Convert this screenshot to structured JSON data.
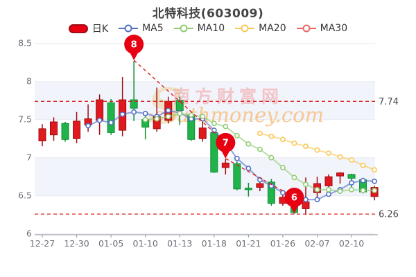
{
  "title": "北特科技(603009)",
  "legend": {
    "day_k": "日K",
    "ma5": "MA5",
    "ma10": "MA10",
    "ma20": "MA20",
    "ma30": "MA30"
  },
  "watermark": {
    "logo": "S",
    "cn": "南方财富网",
    "en": "southmoney.com"
  },
  "colors": {
    "up": "#e0191f",
    "up_border": "#9d0d12",
    "down": "#20b34a",
    "down_border": "#0d8f33",
    "ma5": "#5470c6",
    "ma10": "#91cc75",
    "ma20": "#fac858",
    "ma30": "#ee6666",
    "ref_line": "#d8201c",
    "pin": "#e60012",
    "grid": "#e7eaf2",
    "band": "#f2f4fb",
    "axis": "#8f939d",
    "label": "#6b6e76",
    "ref_label": "#44464a",
    "title": "#454545",
    "watermark_cn": "rgba(240,150,150,0.5)",
    "watermark_en": "rgba(247,184,108,0.75)",
    "watermark_s": "rgba(236,210,164,0.6)"
  },
  "chart_data": {
    "type": "candlestick",
    "title": "北特科技(603009)",
    "ylim": [
      5.99,
      8.5
    ],
    "y_ticks": [
      8.5,
      8,
      7.5,
      7,
      6.5,
      6
    ],
    "y_tick_labels": [
      "8.5",
      "8",
      "7.5",
      "7",
      "6.5",
      "6"
    ],
    "x_tick_indices": [
      0,
      3,
      6,
      9,
      12,
      15,
      18,
      21,
      24,
      27
    ],
    "x_tick_labels": [
      "12-27",
      "12-30",
      "01-05",
      "01-10",
      "01-13",
      "01-18",
      "01-21",
      "01-26",
      "02-07",
      "02-10"
    ],
    "grid": "horizontal",
    "legend_position": "top",
    "candle_columns": [
      "date",
      "open",
      "close",
      "low",
      "high"
    ],
    "candles": [
      [
        "12-27",
        7.22,
        7.38,
        7.15,
        7.44
      ],
      [
        "12-28",
        7.3,
        7.47,
        7.22,
        7.53
      ],
      [
        "12-29",
        7.45,
        7.24,
        7.21,
        7.47
      ],
      [
        "12-30",
        7.25,
        7.48,
        7.19,
        7.6
      ],
      [
        "12-31",
        7.43,
        7.51,
        7.34,
        7.7
      ],
      [
        "01-04",
        7.49,
        7.76,
        7.3,
        7.83
      ],
      [
        "01-05",
        7.72,
        7.33,
        7.3,
        7.77
      ],
      [
        "01-06",
        7.36,
        7.76,
        7.28,
        8.06
      ],
      [
        "01-07",
        7.76,
        7.65,
        7.48,
        8.27
      ],
      [
        "01-10",
        7.5,
        7.4,
        7.24,
        7.55
      ],
      [
        "01-11",
        7.38,
        7.54,
        7.34,
        7.92
      ],
      [
        "01-12",
        7.49,
        7.74,
        7.45,
        7.8
      ],
      [
        "01-13",
        7.75,
        7.62,
        7.43,
        7.8
      ],
      [
        "01-14",
        7.56,
        7.24,
        7.22,
        7.59
      ],
      [
        "01-17",
        7.25,
        7.39,
        7.21,
        7.48
      ],
      [
        "01-18",
        7.33,
        6.81,
        6.8,
        7.37
      ],
      [
        "01-19",
        6.87,
        6.93,
        6.78,
        6.98
      ],
      [
        "01-20",
        6.92,
        6.59,
        6.57,
        6.95
      ],
      [
        "01-21",
        6.6,
        6.58,
        6.49,
        6.67
      ],
      [
        "01-24",
        6.61,
        6.66,
        6.56,
        6.71
      ],
      [
        "01-25",
        6.68,
        6.4,
        6.37,
        6.72
      ],
      [
        "01-26",
        6.4,
        6.48,
        6.37,
        6.52
      ],
      [
        "01-27",
        6.42,
        6.28,
        6.26,
        6.44
      ],
      [
        "01-28",
        6.33,
        6.42,
        6.25,
        6.74
      ],
      [
        "02-07",
        6.54,
        6.66,
        6.43,
        6.75
      ],
      [
        "02-08",
        6.63,
        6.75,
        6.6,
        6.78
      ],
      [
        "02-09",
        6.76,
        6.8,
        6.66,
        6.81
      ],
      [
        "02-10",
        6.78,
        6.73,
        6.57,
        6.79
      ],
      [
        "02-13",
        6.71,
        6.55,
        6.53,
        6.73
      ],
      [
        "02-14",
        6.49,
        6.61,
        6.44,
        6.63
      ]
    ],
    "series": [
      {
        "name": "MA5",
        "values": [
          null,
          null,
          null,
          null,
          7.42,
          7.49,
          7.46,
          7.57,
          7.6,
          7.58,
          7.54,
          7.62,
          7.59,
          7.51,
          7.51,
          7.36,
          7.2,
          6.99,
          6.86,
          6.71,
          6.63,
          6.54,
          6.48,
          6.45,
          6.45,
          6.52,
          6.58,
          6.67,
          6.7,
          6.69
        ]
      },
      {
        "name": "MA10",
        "values": [
          null,
          null,
          null,
          null,
          null,
          null,
          null,
          null,
          null,
          7.5,
          7.51,
          7.54,
          7.58,
          7.56,
          7.54,
          7.45,
          7.41,
          7.29,
          7.18,
          7.11,
          7.0,
          6.87,
          6.74,
          6.65,
          6.58,
          6.58,
          6.56,
          6.58,
          6.57,
          6.57
        ]
      },
      {
        "name": "MA20",
        "values": [
          null,
          null,
          null,
          null,
          null,
          null,
          null,
          null,
          null,
          null,
          null,
          null,
          null,
          null,
          null,
          null,
          null,
          null,
          null,
          7.32,
          7.28,
          7.24,
          7.19,
          7.15,
          7.1,
          7.06,
          7.01,
          6.97,
          6.9,
          6.84
        ]
      },
      {
        "name": "MA30",
        "values": [
          null,
          null,
          null,
          null,
          null,
          null,
          null,
          null,
          null,
          null,
          null,
          null,
          null,
          null,
          null,
          null,
          null,
          null,
          null,
          null,
          null,
          null,
          null,
          null,
          null,
          null,
          null,
          null,
          null,
          null
        ]
      }
    ],
    "ref_lines": [
      {
        "value": 7.74,
        "label": "7.74"
      },
      {
        "value": 6.26,
        "label": "6.26"
      }
    ],
    "pins": [
      {
        "label": "8",
        "index": 8,
        "anchor": "high"
      },
      {
        "label": "7",
        "index": 16,
        "anchor": "high"
      },
      {
        "label": "6",
        "index": 22,
        "anchor": "low"
      }
    ]
  }
}
